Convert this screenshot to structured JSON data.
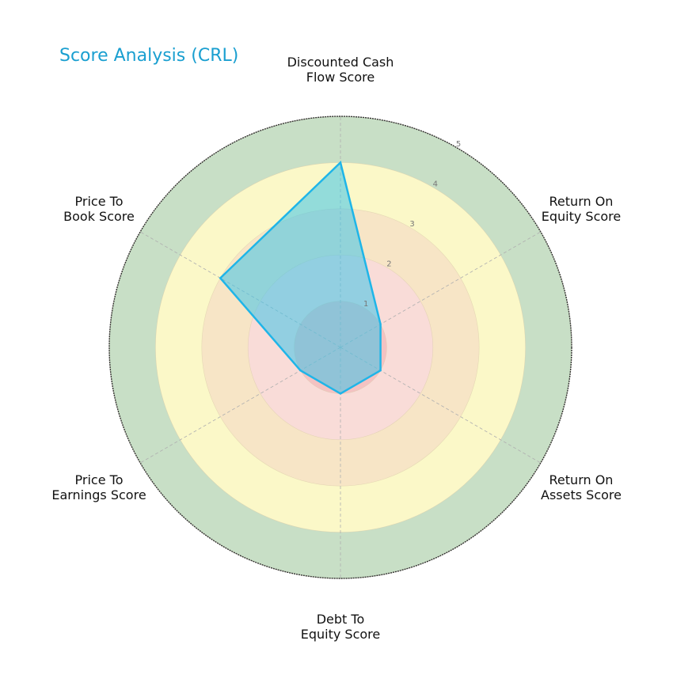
{
  "title": "Score Analysis (CRL)",
  "chart_data": {
    "type": "radar",
    "title": "Score Analysis (CRL)",
    "categories": [
      "Discounted Cash Flow Score",
      "Return On Equity Score",
      "Return On Assets Score",
      "Debt To Equity Score",
      "Price To Earnings Score",
      "Price To Book Score"
    ],
    "category_lines": [
      [
        "Discounted Cash",
        "Flow Score"
      ],
      [
        "Return On",
        "Equity Score"
      ],
      [
        "Return On",
        "Assets Score"
      ],
      [
        "Debt To",
        "Equity Score"
      ],
      [
        "Price To",
        "Earnings Score"
      ],
      [
        "Price To",
        "Book Score"
      ]
    ],
    "series": [
      {
        "name": "CRL",
        "values": [
          4,
          1,
          1,
          1,
          1,
          3
        ],
        "color": "#1fb5e8",
        "fill": "#3ec4ea"
      }
    ],
    "rlim": [
      0,
      5
    ],
    "r_ticks": [
      1,
      2,
      3,
      4,
      5
    ],
    "bands": [
      {
        "from": 0,
        "to": 1,
        "color": "#f4c2c2"
      },
      {
        "from": 1,
        "to": 2,
        "color": "#f9dcd8"
      },
      {
        "from": 2,
        "to": 3,
        "color": "#f7e5c6"
      },
      {
        "from": 3,
        "to": 4,
        "color": "#fbf8c8"
      },
      {
        "from": 4,
        "to": 5,
        "color": "#c8dfc6"
      }
    ],
    "grid": true,
    "legend": null
  }
}
